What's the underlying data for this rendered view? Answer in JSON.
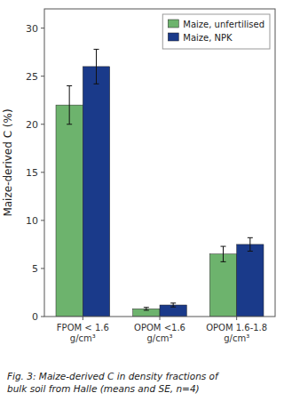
{
  "chart_data": {
    "type": "bar",
    "title": "Fig. 3: Maize-derived C in density fractions of\nbulk soil from Halle (means and SE, n=4)",
    "ylabel": "Maize-derived C (%)",
    "categories": [
      "FPOM < 1.6\ng/cm³",
      "OPOM <1.6\ng/cm³",
      "OPOM 1.6-1.8\ng/cm³"
    ],
    "series": [
      {
        "name": "Maize, unfertilised",
        "color": "#6db36d",
        "values": [
          22.0,
          0.8,
          6.5
        ],
        "errors": [
          2.0,
          0.15,
          0.8
        ]
      },
      {
        "name": "Maize, NPK",
        "color": "#1a3a8a",
        "values": [
          26.0,
          1.2,
          7.5
        ],
        "errors": [
          1.8,
          0.2,
          0.7
        ]
      }
    ],
    "ylim": [
      0,
      32
    ],
    "yticks": [
      0,
      5,
      10,
      15,
      20,
      25,
      30
    ],
    "grid": false,
    "legend": "upper right"
  }
}
